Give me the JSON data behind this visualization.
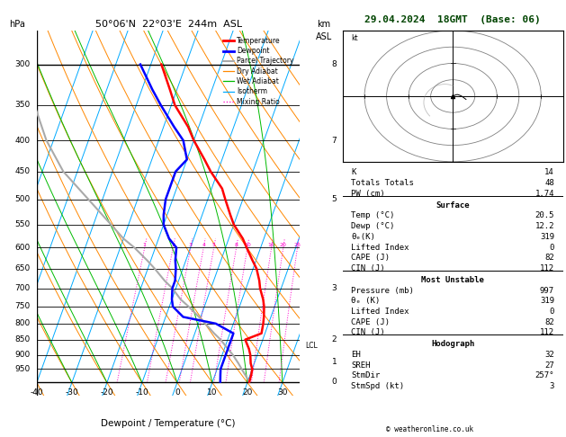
{
  "title_left": "50°06'N  22°03'E  244m  ASL",
  "title_right": "29.04.2024  18GMT  (Base: 06)",
  "xlabel": "Dewpoint / Temperature (°C)",
  "ylabel_left": "hPa",
  "ylabel_right": "km\nASL",
  "pressure_levels": [
    300,
    350,
    400,
    450,
    500,
    550,
    600,
    650,
    700,
    750,
    800,
    850,
    900,
    950
  ],
  "temp_color": "#ff0000",
  "dewp_color": "#0000ff",
  "parcel_color": "#aaaaaa",
  "dry_adiabat_color": "#ff8800",
  "wet_adiabat_color": "#00bb00",
  "isotherm_color": "#00aaff",
  "mixing_ratio_color": "#ff00cc",
  "background": "#ffffff",
  "xmin": -40,
  "xmax": 35,
  "K": 14,
  "TT": 48,
  "PW": 1.74,
  "surf_temp": 20.5,
  "surf_dewp": 12.2,
  "theta_e": 319,
  "lifted_index": 0,
  "CAPE": 82,
  "CIN": 112,
  "mu_pressure": 997,
  "mu_theta_e": 319,
  "mu_li": 0,
  "mu_cape": 82,
  "mu_cin": 112,
  "EH": 32,
  "SREH": 27,
  "StmDir": 257,
  "StmSpd": 3,
  "copyright": "© weatheronline.co.uk",
  "legend_items": [
    {
      "label": "Temperature",
      "color": "#ff0000",
      "lw": 2.0,
      "ls": "-"
    },
    {
      "label": "Dewpoint",
      "color": "#0000ff",
      "lw": 2.0,
      "ls": "-"
    },
    {
      "label": "Parcel Trajectory",
      "color": "#aaaaaa",
      "lw": 1.5,
      "ls": "-"
    },
    {
      "label": "Dry Adiabat",
      "color": "#ff8800",
      "lw": 0.9,
      "ls": "-"
    },
    {
      "label": "Wet Adiabat",
      "color": "#00bb00",
      "lw": 0.9,
      "ls": "-"
    },
    {
      "label": "Isotherm",
      "color": "#00aaff",
      "lw": 0.9,
      "ls": "-"
    },
    {
      "label": "Mixing Ratio",
      "color": "#ff00cc",
      "lw": 0.9,
      "ls": ":"
    }
  ],
  "mixing_ratio_values": [
    1,
    2,
    3,
    4,
    5,
    8,
    10,
    16,
    20,
    26
  ],
  "temp_profile": {
    "pressure": [
      300,
      330,
      350,
      380,
      400,
      430,
      450,
      480,
      500,
      530,
      550,
      580,
      600,
      630,
      650,
      680,
      700,
      730,
      750,
      780,
      800,
      830,
      850,
      880,
      900,
      930,
      950,
      970,
      997
    ],
    "temp": [
      -37,
      -32,
      -29,
      -23,
      -20,
      -15,
      -12,
      -7,
      -5,
      -2,
      0,
      4,
      6,
      9,
      11,
      13,
      14,
      16,
      17,
      18,
      18.5,
      19,
      15,
      17,
      18,
      19,
      20,
      20.3,
      20.5
    ]
  },
  "dewp_profile": {
    "pressure": [
      300,
      330,
      350,
      380,
      400,
      430,
      450,
      480,
      500,
      530,
      550,
      580,
      600,
      630,
      650,
      680,
      700,
      730,
      750,
      780,
      800,
      820,
      830,
      850,
      880,
      900,
      930,
      950,
      970,
      997
    ],
    "dewp": [
      -43,
      -37,
      -33,
      -27,
      -23,
      -20,
      -22,
      -22,
      -22,
      -21,
      -20,
      -17,
      -14,
      -13,
      -12,
      -11,
      -11,
      -10,
      -9,
      -5,
      5,
      9,
      11,
      11,
      11,
      11,
      11,
      11,
      11.5,
      12.2
    ]
  },
  "parcel_profile": {
    "pressure": [
      997,
      970,
      950,
      930,
      900,
      880,
      865,
      850,
      830,
      800,
      780,
      750,
      730,
      700,
      680,
      650,
      630,
      600,
      580,
      550,
      500,
      450,
      400,
      350,
      300
    ],
    "temp": [
      20.5,
      18.5,
      17,
      15.5,
      13,
      11,
      9.5,
      8,
      5.5,
      2,
      -0.5,
      -4.5,
      -7.5,
      -11,
      -14,
      -18,
      -21,
      -26,
      -30,
      -35,
      -44,
      -54,
      -62,
      -69,
      -74
    ]
  },
  "km_axis": {
    "pressures": [
      997,
      925,
      850,
      700,
      500,
      400,
      300
    ],
    "km_labels": [
      "0",
      "1",
      "2",
      "3",
      "5",
      "7",
      "8"
    ]
  },
  "lcl_pressure": 870,
  "lcl_label": "LCL"
}
